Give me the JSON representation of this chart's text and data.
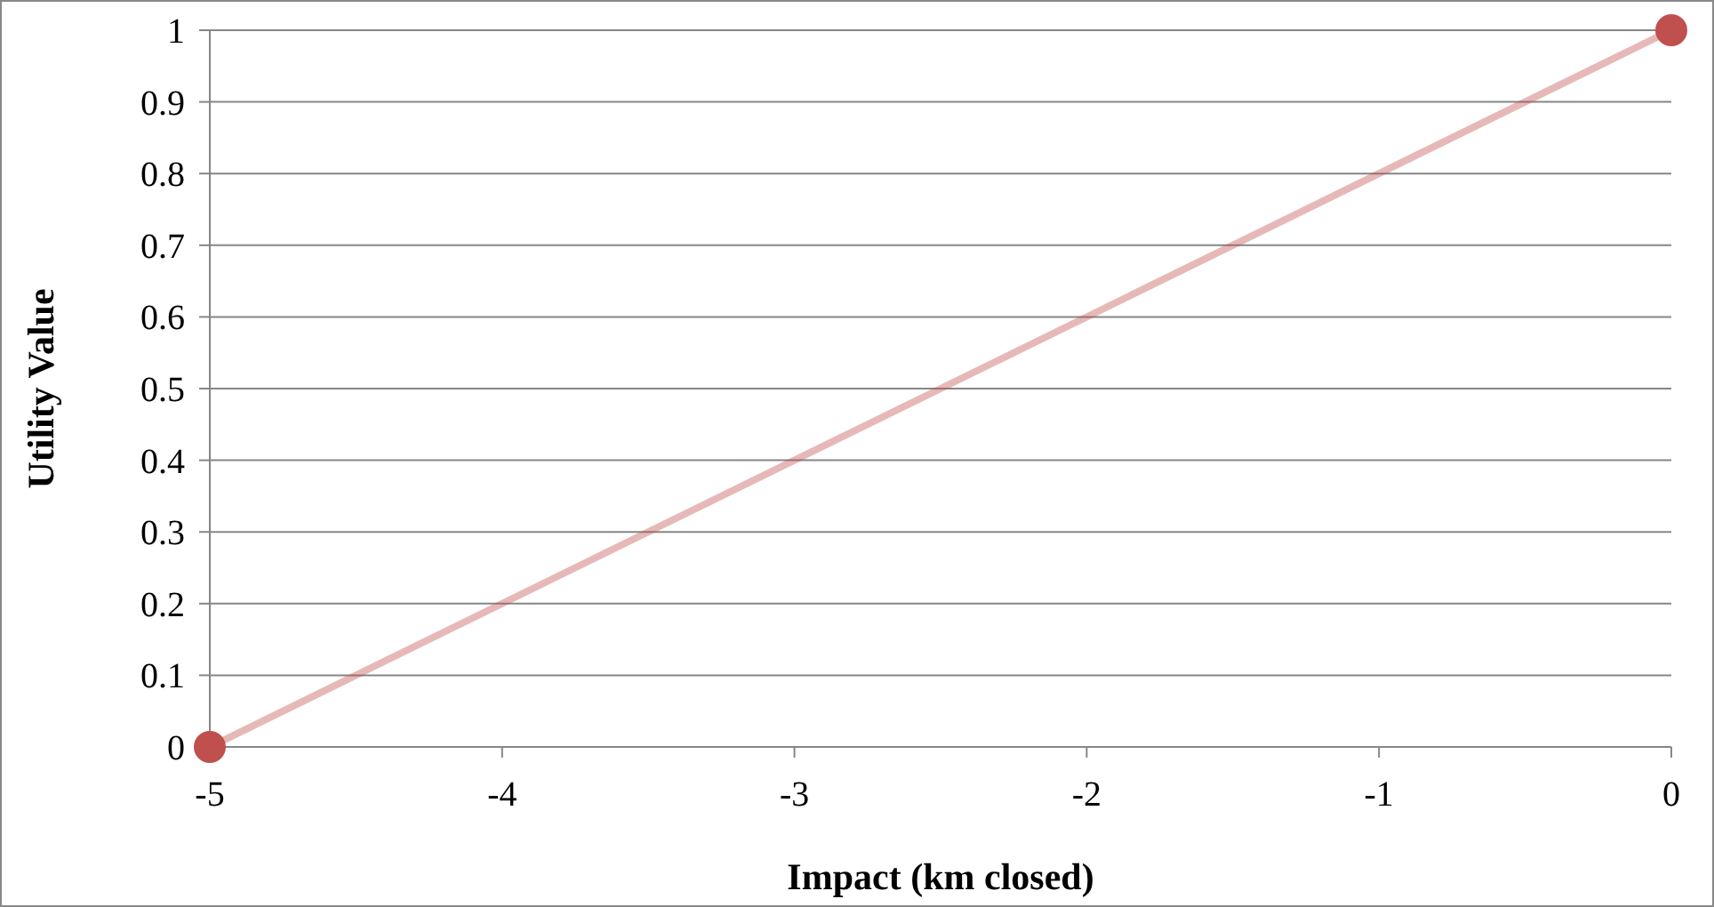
{
  "chart_data": {
    "type": "line",
    "xlabel": "Impact (km closed)",
    "ylabel": "Utility Value",
    "series": [
      {
        "x": [
          -5,
          0
        ],
        "values": [
          0,
          1
        ],
        "color": "#c0504d"
      }
    ],
    "xlim": [
      -5,
      0
    ],
    "xticks": [
      -5,
      -4,
      -3,
      -2,
      -1,
      0
    ],
    "ylim": [
      0,
      1
    ],
    "yticks": [
      0,
      0.1,
      0.2,
      0.3,
      0.4,
      0.5,
      0.6,
      0.7,
      0.8,
      0.9,
      1
    ],
    "grid": "y",
    "marker": "circle",
    "line_style": "solid"
  }
}
